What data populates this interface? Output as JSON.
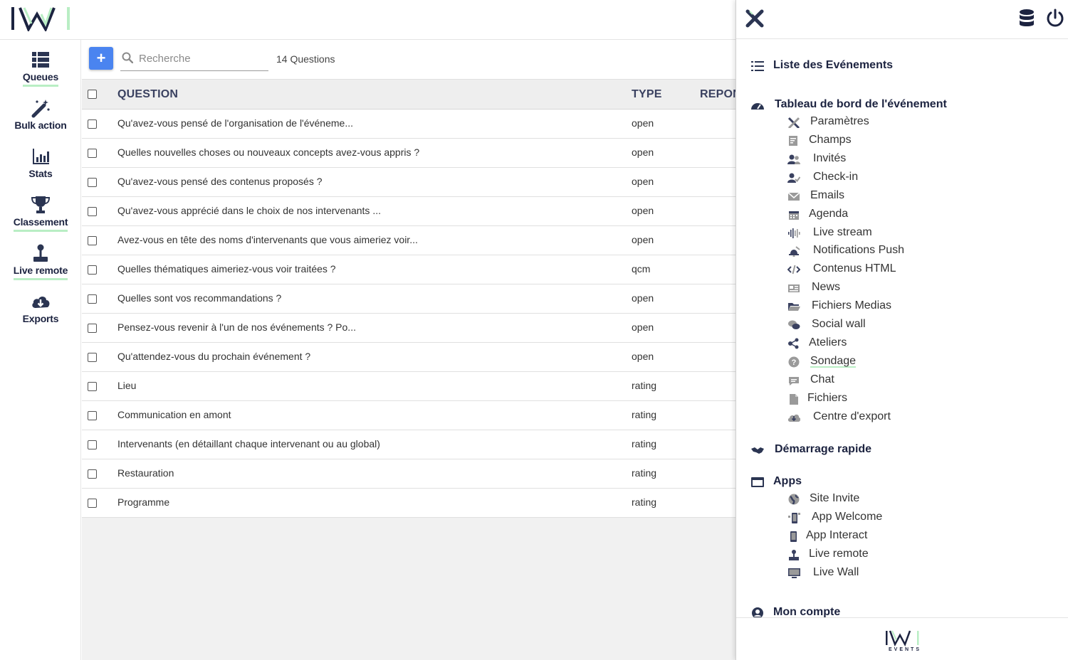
{
  "sidebar": {
    "items": [
      {
        "label": "Queues",
        "icon": "queues-icon"
      },
      {
        "label": "Bulk action",
        "icon": "magic-wand-icon"
      },
      {
        "label": "Stats",
        "icon": "bar-chart-icon"
      },
      {
        "label": "Classement",
        "icon": "trophy-icon"
      },
      {
        "label": "Live remote",
        "icon": "joystick-icon"
      },
      {
        "label": "Exports",
        "icon": "cloud-download-icon"
      }
    ]
  },
  "toolbar": {
    "add_label": "+",
    "search_placeholder": "Recherche",
    "count_label": "14 Questions"
  },
  "table": {
    "headers": {
      "question": "QUESTION",
      "type": "TYPE",
      "responses": "REPON"
    },
    "rows": [
      {
        "question": "Qu'avez-vous pensé de l'organisation de l'événeme...",
        "type": "open"
      },
      {
        "question": "Quelles nouvelles choses ou nouveaux concepts avez-vous appris ?",
        "type": "open"
      },
      {
        "question": "Qu'avez-vous pensé des contenus proposés ?",
        "type": "open"
      },
      {
        "question": "Qu'avez-vous apprécié dans le choix de nos intervenants ...",
        "type": "open"
      },
      {
        "question": "Avez-vous en tête des noms d'intervenants que vous aimeriez voir...",
        "type": "open"
      },
      {
        "question": "Quelles thématiques aimeriez-vous voir traitées ?",
        "type": "qcm"
      },
      {
        "question": "Quelles sont vos recommandations ?",
        "type": "open"
      },
      {
        "question": "Pensez-vous revenir à l'un de nos événements ? Po...",
        "type": "open"
      },
      {
        "question": "Qu'attendez-vous du prochain événement ?",
        "type": "open"
      },
      {
        "question": "Lieu",
        "type": "rating"
      },
      {
        "question": "Communication en amont",
        "type": "rating"
      },
      {
        "question": "Intervenants (en détaillant chaque intervenant ou au global)",
        "type": "rating"
      },
      {
        "question": "Restauration",
        "type": "rating"
      },
      {
        "question": "Programme",
        "type": "rating"
      }
    ]
  },
  "panel": {
    "list_events": "Liste des Evénements",
    "dashboard": "Tableau de bord de l'événement",
    "dashboard_items": [
      {
        "label": "Paramètres",
        "icon": "tools-icon"
      },
      {
        "label": "Champs",
        "icon": "form-icon"
      },
      {
        "label": "Invités",
        "icon": "users-icon"
      },
      {
        "label": "Check-in",
        "icon": "user-check-icon"
      },
      {
        "label": "Emails",
        "icon": "envelope-icon"
      },
      {
        "label": "Agenda",
        "icon": "calendar-icon"
      },
      {
        "label": "Live stream",
        "icon": "waveform-icon"
      },
      {
        "label": "Notifications Push",
        "icon": "bell-icon"
      },
      {
        "label": "Contenus HTML",
        "icon": "code-icon"
      },
      {
        "label": "News",
        "icon": "newspaper-icon"
      },
      {
        "label": "Fichiers Medias",
        "icon": "folder-open-icon"
      },
      {
        "label": "Social wall",
        "icon": "comments-icon"
      },
      {
        "label": "Ateliers",
        "icon": "share-nodes-icon"
      },
      {
        "label": "Sondage",
        "icon": "question-circle-icon"
      },
      {
        "label": "Chat",
        "icon": "chat-bubble-icon"
      },
      {
        "label": "Fichiers",
        "icon": "file-icon"
      },
      {
        "label": "Centre d'export",
        "icon": "cloud-download-icon"
      }
    ],
    "quick_start": "Démarrage rapide",
    "apps": "Apps",
    "apps_items": [
      {
        "label": "Site Invite",
        "icon": "globe-icon"
      },
      {
        "label": "App Welcome",
        "icon": "mobile-welcome-icon"
      },
      {
        "label": "App Interact",
        "icon": "mobile-icon"
      },
      {
        "label": "Live remote",
        "icon": "joystick-icon"
      },
      {
        "label": "Live Wall",
        "icon": "monitor-icon"
      }
    ],
    "account": "Mon compte",
    "footer_logo_text": "EVENTS"
  },
  "colors": {
    "accent_green": "#b9eec4",
    "add_button": "#4a84f0",
    "navy": "#1c2340"
  }
}
